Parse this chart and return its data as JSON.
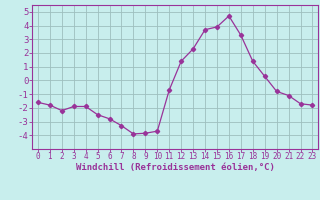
{
  "x": [
    0,
    1,
    2,
    3,
    4,
    5,
    6,
    7,
    8,
    9,
    10,
    11,
    12,
    13,
    14,
    15,
    16,
    17,
    18,
    19,
    20,
    21,
    22,
    23
  ],
  "y": [
    -1.6,
    -1.8,
    -2.2,
    -1.9,
    -1.9,
    -2.5,
    -2.8,
    -3.3,
    -3.9,
    -3.85,
    -3.7,
    -0.7,
    1.4,
    2.3,
    3.7,
    3.9,
    4.7,
    3.3,
    1.4,
    0.3,
    -0.8,
    -1.1,
    -1.7,
    -1.8
  ],
  "line_color": "#993399",
  "marker": "D",
  "marker_size": 2.2,
  "bg_color": "#c8eeed",
  "grid_color": "#9dbfbe",
  "axis_color": "#993399",
  "tick_color": "#993399",
  "xlabel": "Windchill (Refroidissement éolien,°C)",
  "xlabel_fontsize": 6.5,
  "ylim": [
    -5,
    5.5
  ],
  "yticks": [
    -4,
    -3,
    -2,
    -1,
    0,
    1,
    2,
    3,
    4,
    5
  ],
  "xlim": [
    -0.5,
    23.5
  ],
  "xticks": [
    0,
    1,
    2,
    3,
    4,
    5,
    6,
    7,
    8,
    9,
    10,
    11,
    12,
    13,
    14,
    15,
    16,
    17,
    18,
    19,
    20,
    21,
    22,
    23
  ],
  "xtick_labels": [
    "0",
    "1",
    "2",
    "3",
    "4",
    "5",
    "6",
    "7",
    "8",
    "9",
    "10",
    "11",
    "12",
    "13",
    "14",
    "15",
    "16",
    "17",
    "18",
    "19",
    "20",
    "21",
    "22",
    "23"
  ]
}
